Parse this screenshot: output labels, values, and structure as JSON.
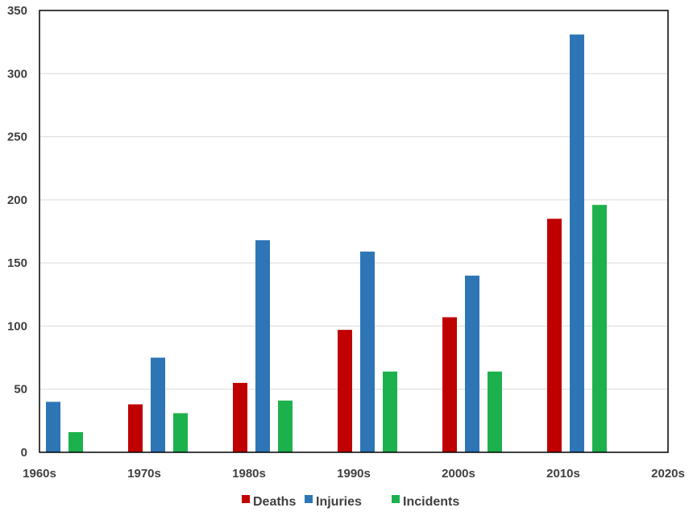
{
  "chart_data": {
    "type": "bar",
    "title": "",
    "xlabel": "",
    "ylabel": "",
    "categories": [
      "1960s",
      "1970s",
      "1980s",
      "1990s",
      "2000s",
      "2010s",
      "2020s"
    ],
    "x_ticks": [
      1960,
      1970,
      1980,
      1990,
      2000,
      2010,
      2020
    ],
    "xlim": [
      1960,
      2020
    ],
    "ylim": [
      0,
      350
    ],
    "y_ticks": [
      0,
      50,
      100,
      150,
      200,
      250,
      300,
      350
    ],
    "grid": true,
    "legend_position": "bottom",
    "series": [
      {
        "name": "Deaths",
        "color": "#c00000",
        "values": [
          null,
          38,
          55,
          97,
          107,
          185,
          null
        ]
      },
      {
        "name": "Injuries",
        "color": "#2e75b6",
        "values": [
          40,
          75,
          168,
          159,
          140,
          331,
          null
        ]
      },
      {
        "name": "Incidents",
        "color": "#1db14d",
        "values": [
          16,
          31,
          41,
          64,
          64,
          196,
          null
        ]
      }
    ]
  }
}
